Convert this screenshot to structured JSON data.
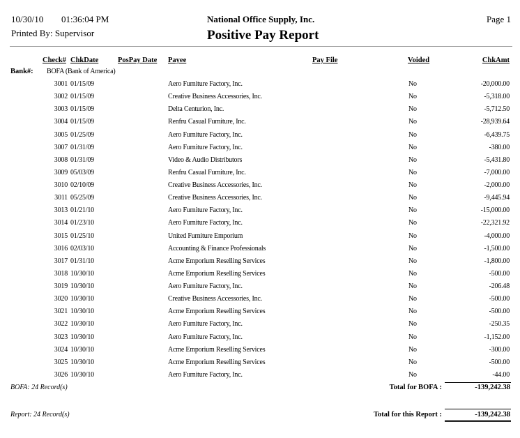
{
  "header": {
    "date": "10/30/10",
    "time": "01:36:04 PM",
    "printed_by": "Printed By: Supervisor",
    "company": "National Office Supply, Inc.",
    "title": "Positive Pay Report",
    "page": "Page 1"
  },
  "columns": {
    "check": "Check#",
    "chkdate": "ChkDate",
    "pospay_date": "PosPay Date",
    "payee": "Payee",
    "pay_file": "Pay File",
    "voided": "Voided",
    "chkamt": "ChkAmt"
  },
  "bank": {
    "label": "Bank#:",
    "value": "BOFA (Bank of America)"
  },
  "rows": [
    {
      "check": "3001",
      "date": "01/15/09",
      "payee": "Aero Furniture Factory, Inc.",
      "voided": "No",
      "amount": "-20,000.00"
    },
    {
      "check": "3002",
      "date": "01/15/09",
      "payee": "Creative Business Accessories, Inc.",
      "voided": "No",
      "amount": "-5,318.00"
    },
    {
      "check": "3003",
      "date": "01/15/09",
      "payee": "Delta Centurion, Inc.",
      "voided": "No",
      "amount": "-5,712.50"
    },
    {
      "check": "3004",
      "date": "01/15/09",
      "payee": "Renfru Casual Furniture, Inc.",
      "voided": "No",
      "amount": "-28,939.64"
    },
    {
      "check": "3005",
      "date": "01/25/09",
      "payee": "Aero Furniture Factory, Inc.",
      "voided": "No",
      "amount": "-6,439.75"
    },
    {
      "check": "3007",
      "date": "01/31/09",
      "payee": "Aero Furniture Factory, Inc.",
      "voided": "No",
      "amount": "-380.00"
    },
    {
      "check": "3008",
      "date": "01/31/09",
      "payee": "Video & Audio Distributors",
      "voided": "No",
      "amount": "-5,431.80"
    },
    {
      "check": "3009",
      "date": "05/03/09",
      "payee": "Renfru Casual Furniture, Inc.",
      "voided": "No",
      "amount": "-7,000.00"
    },
    {
      "check": "3010",
      "date": "02/10/09",
      "payee": "Creative Business Accessories, Inc.",
      "voided": "No",
      "amount": "-2,000.00"
    },
    {
      "check": "3011",
      "date": "05/25/09",
      "payee": "Creative Business Accessories, Inc.",
      "voided": "No",
      "amount": "-9,445.94"
    },
    {
      "check": "3013",
      "date": "01/21/10",
      "payee": "Aero Furniture Factory, Inc.",
      "voided": "No",
      "amount": "-15,000.00"
    },
    {
      "check": "3014",
      "date": "01/23/10",
      "payee": "Aero Furniture Factory, Inc.",
      "voided": "No",
      "amount": "-22,321.92"
    },
    {
      "check": "3015",
      "date": "01/25/10",
      "payee": "United Furniture Emporium",
      "voided": "No",
      "amount": "-4,000.00"
    },
    {
      "check": "3016",
      "date": "02/03/10",
      "payee": "Accounting & Finance Professionals",
      "voided": "No",
      "amount": "-1,500.00"
    },
    {
      "check": "3017",
      "date": "01/31/10",
      "payee": "Acme Emporium Reselling Services",
      "voided": "No",
      "amount": "-1,800.00"
    },
    {
      "check": "3018",
      "date": "10/30/10",
      "payee": "Acme Emporium Reselling Services",
      "voided": "No",
      "amount": "-500.00"
    },
    {
      "check": "3019",
      "date": "10/30/10",
      "payee": "Aero Furniture Factory, Inc.",
      "voided": "No",
      "amount": "-206.48"
    },
    {
      "check": "3020",
      "date": "10/30/10",
      "payee": "Creative Business Accessories, Inc.",
      "voided": "No",
      "amount": "-500.00"
    },
    {
      "check": "3021",
      "date": "10/30/10",
      "payee": "Acme Emporium Reselling Services",
      "voided": "No",
      "amount": "-500.00"
    },
    {
      "check": "3022",
      "date": "10/30/10",
      "payee": "Aero Furniture Factory, Inc.",
      "voided": "No",
      "amount": "-250.35"
    },
    {
      "check": "3023",
      "date": "10/30/10",
      "payee": "Aero Furniture Factory, Inc.",
      "voided": "No",
      "amount": "-1,152.00"
    },
    {
      "check": "3024",
      "date": "10/30/10",
      "payee": "Acme Emporium Reselling Services",
      "voided": "No",
      "amount": "-300.00"
    },
    {
      "check": "3025",
      "date": "10/30/10",
      "payee": "Acme Emporium Reselling Services",
      "voided": "No",
      "amount": "-500.00"
    },
    {
      "check": "3026",
      "date": "10/30/10",
      "payee": "Aero Furniture Factory, Inc.",
      "voided": "No",
      "amount": "-44.00"
    }
  ],
  "group_footer": {
    "records": "BOFA: 24 Record(s)",
    "total_label": "Total for BOFA :",
    "total": "-139,242.38"
  },
  "report_footer": {
    "records": "Report: 24 Record(s)",
    "total_label": "Total for this Report :",
    "total": "-139,242.38"
  }
}
